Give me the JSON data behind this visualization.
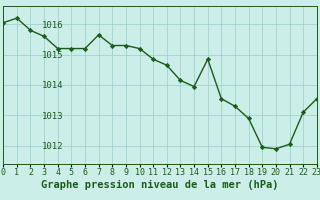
{
  "x": [
    0,
    1,
    2,
    3,
    4,
    5,
    6,
    7,
    8,
    9,
    10,
    11,
    12,
    13,
    14,
    15,
    16,
    17,
    18,
    19,
    20,
    21,
    22,
    23
  ],
  "y": [
    1016.05,
    1016.2,
    1015.8,
    1015.6,
    1015.2,
    1015.2,
    1015.2,
    1015.65,
    1015.3,
    1015.3,
    1015.2,
    1014.85,
    1014.65,
    1014.15,
    1013.95,
    1014.85,
    1013.55,
    1013.3,
    1012.9,
    1011.95,
    1011.9,
    1012.05,
    1013.1,
    1013.55
  ],
  "line_color": "#1a5c1a",
  "marker": "D",
  "marker_size": 2.2,
  "bg_color": "#cceee8",
  "grid_color": "#99cccc",
  "xlabel": "Graphe pression niveau de la mer (hPa)",
  "xlabel_fontsize": 7.5,
  "yticks": [
    1012,
    1013,
    1014,
    1015,
    1016
  ],
  "xticks": [
    0,
    1,
    2,
    3,
    4,
    5,
    6,
    7,
    8,
    9,
    10,
    11,
    12,
    13,
    14,
    15,
    16,
    17,
    18,
    19,
    20,
    21,
    22,
    23
  ],
  "ylim": [
    1011.4,
    1016.6
  ],
  "xlim": [
    0,
    23
  ],
  "ytick_fontsize": 6.5,
  "xtick_fontsize": 6.0,
  "line_width": 1.0
}
